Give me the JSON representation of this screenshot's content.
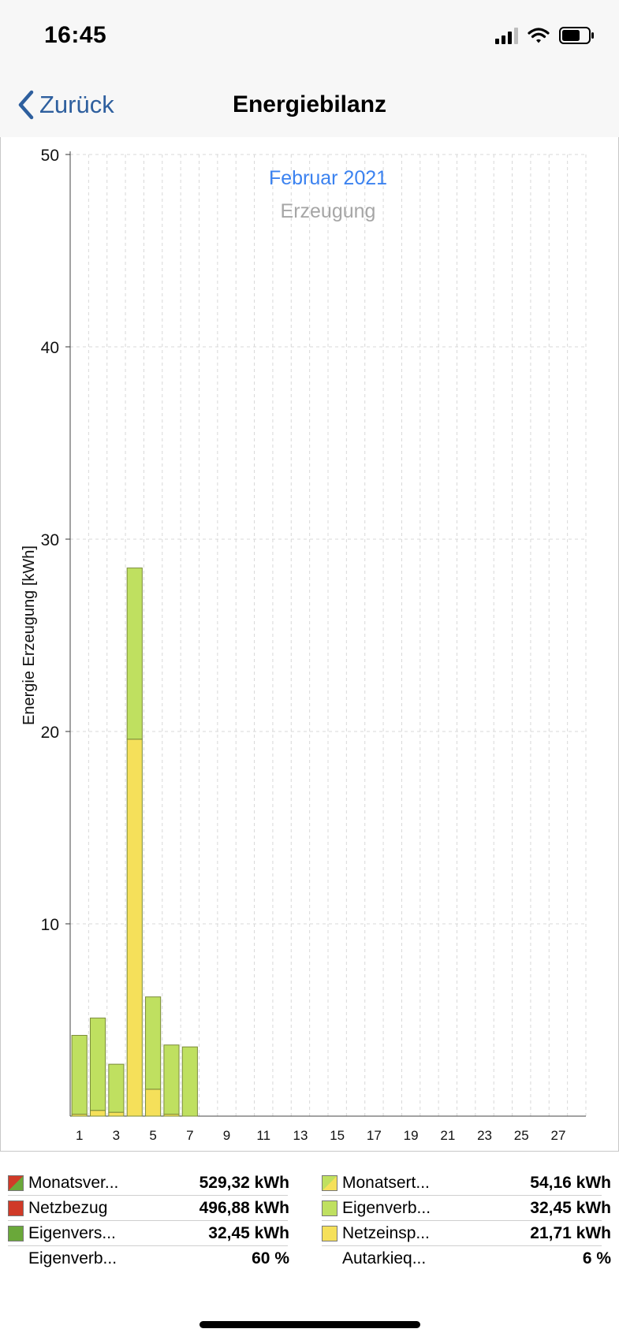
{
  "status_bar": {
    "time": "16:45"
  },
  "nav": {
    "back_label": "Zurück",
    "title": "Energiebilanz"
  },
  "chart_data": {
    "type": "bar",
    "stacked": true,
    "title": "Februar 2021",
    "subtitle": "Erzeugung",
    "ylabel": "Energie Erzeugung [kWh]",
    "xlabel": "",
    "ylim": [
      0,
      50
    ],
    "yticks": [
      10,
      20,
      30,
      40,
      50
    ],
    "categories": [
      "1",
      "2",
      "3",
      "4",
      "5",
      "6",
      "7"
    ],
    "xtick_labels": [
      "1",
      "3",
      "5",
      "7",
      "9",
      "11",
      "13",
      "15",
      "17",
      "19",
      "21",
      "23",
      "25",
      "27"
    ],
    "x_days_total": 28,
    "grid": true,
    "series": [
      {
        "name": "Netzeinspeisung",
        "color": "#f5e05a",
        "values": [
          0.1,
          0.3,
          0.2,
          19.6,
          1.4,
          0.1,
          0.0
        ]
      },
      {
        "name": "Eigenverbrauch",
        "color": "#bfe060",
        "values": [
          4.1,
          4.8,
          2.5,
          8.9,
          4.8,
          3.6,
          3.6
        ]
      }
    ],
    "colors": {
      "bar_edge": "#7a8a3a",
      "grid": "#d8d8d8",
      "title": "#3b82f0",
      "subtitle": "#a6a6a6"
    }
  },
  "legend": {
    "rows": [
      {
        "left": {
          "icon": "half-red-green",
          "label": "Monatsver...",
          "value": "529,32 kWh"
        },
        "right": {
          "icon": "half-yellow-green",
          "label": "Monatsert...",
          "value": "54,16 kWh"
        }
      },
      {
        "left": {
          "icon": "red",
          "label": "Netzbezug",
          "value": "496,88 kWh"
        },
        "right": {
          "icon": "light-green",
          "label": "Eigenverb...",
          "value": "32,45 kWh"
        }
      },
      {
        "left": {
          "icon": "dark-green",
          "label": "Eigenvers...",
          "value": "32,45 kWh"
        },
        "right": {
          "icon": "yellow",
          "label": "Netzeinsp...",
          "value": "21,71 kWh"
        }
      },
      {
        "left": {
          "icon": "",
          "label": "Eigenverb...",
          "value": "60 %"
        },
        "right": {
          "icon": "",
          "label": "Autarkieq...",
          "value": "6 %"
        }
      }
    ]
  }
}
